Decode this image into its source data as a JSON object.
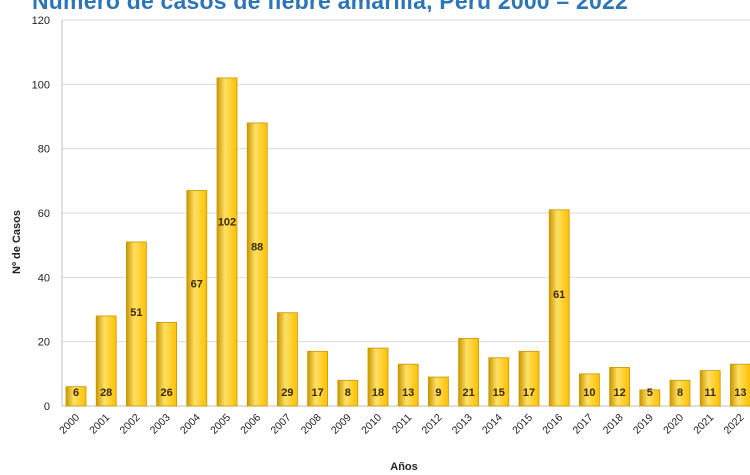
{
  "chart_data": {
    "type": "bar",
    "title": "Número de casos de fiebre amarilla, Perú 2000 – 2022",
    "xlabel": "Años",
    "ylabel": "Nº de Casos",
    "categories": [
      "2000",
      "2001",
      "2002",
      "2003",
      "2004",
      "2005",
      "2006",
      "2007",
      "2008",
      "2009",
      "2010",
      "2011",
      "2012",
      "2013",
      "2014",
      "2015",
      "2016",
      "2017",
      "2018",
      "2019",
      "2020",
      "2021",
      "2022"
    ],
    "values": [
      6,
      28,
      51,
      26,
      67,
      102,
      88,
      29,
      17,
      8,
      18,
      13,
      9,
      21,
      15,
      17,
      61,
      10,
      12,
      5,
      8,
      11,
      13
    ],
    "ylim": [
      0,
      120
    ],
    "yticks": [
      0,
      20,
      40,
      60,
      80,
      100,
      120
    ],
    "grid": true,
    "legend": "none",
    "colors": {
      "bar": "#ffc000",
      "bar_highlight": "#ffe066",
      "bar_edge": "#c99700",
      "grid": "#d9d9d9",
      "title": "#2e75b6"
    }
  }
}
